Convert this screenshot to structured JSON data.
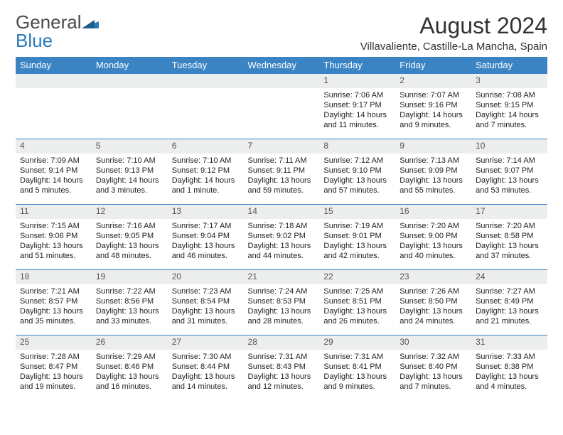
{
  "logo": {
    "word1": "General",
    "word2": "Blue"
  },
  "title": "August 2024",
  "subtitle": "Villavaliente, Castille-La Mancha, Spain",
  "colors": {
    "header_bg": "#3b84c4",
    "daybar_bg": "#eceded",
    "accent_border": "#3b84c4",
    "text": "#222222",
    "logo_gray": "#4a4a4a",
    "logo_blue": "#2a7ab9"
  },
  "typography": {
    "title_fontsize": 32,
    "subtitle_fontsize": 15,
    "th_fontsize": 13,
    "daynum_fontsize": 12,
    "body_fontsize": 11
  },
  "weekdays": [
    "Sunday",
    "Monday",
    "Tuesday",
    "Wednesday",
    "Thursday",
    "Friday",
    "Saturday"
  ],
  "weeks": [
    [
      null,
      null,
      null,
      null,
      {
        "n": "1",
        "sr": "Sunrise: 7:06 AM",
        "ss": "Sunset: 9:17 PM",
        "d1": "Daylight: 14 hours",
        "d2": "and 11 minutes."
      },
      {
        "n": "2",
        "sr": "Sunrise: 7:07 AM",
        "ss": "Sunset: 9:16 PM",
        "d1": "Daylight: 14 hours",
        "d2": "and 9 minutes."
      },
      {
        "n": "3",
        "sr": "Sunrise: 7:08 AM",
        "ss": "Sunset: 9:15 PM",
        "d1": "Daylight: 14 hours",
        "d2": "and 7 minutes."
      }
    ],
    [
      {
        "n": "4",
        "sr": "Sunrise: 7:09 AM",
        "ss": "Sunset: 9:14 PM",
        "d1": "Daylight: 14 hours",
        "d2": "and 5 minutes."
      },
      {
        "n": "5",
        "sr": "Sunrise: 7:10 AM",
        "ss": "Sunset: 9:13 PM",
        "d1": "Daylight: 14 hours",
        "d2": "and 3 minutes."
      },
      {
        "n": "6",
        "sr": "Sunrise: 7:10 AM",
        "ss": "Sunset: 9:12 PM",
        "d1": "Daylight: 14 hours",
        "d2": "and 1 minute."
      },
      {
        "n": "7",
        "sr": "Sunrise: 7:11 AM",
        "ss": "Sunset: 9:11 PM",
        "d1": "Daylight: 13 hours",
        "d2": "and 59 minutes."
      },
      {
        "n": "8",
        "sr": "Sunrise: 7:12 AM",
        "ss": "Sunset: 9:10 PM",
        "d1": "Daylight: 13 hours",
        "d2": "and 57 minutes."
      },
      {
        "n": "9",
        "sr": "Sunrise: 7:13 AM",
        "ss": "Sunset: 9:09 PM",
        "d1": "Daylight: 13 hours",
        "d2": "and 55 minutes."
      },
      {
        "n": "10",
        "sr": "Sunrise: 7:14 AM",
        "ss": "Sunset: 9:07 PM",
        "d1": "Daylight: 13 hours",
        "d2": "and 53 minutes."
      }
    ],
    [
      {
        "n": "11",
        "sr": "Sunrise: 7:15 AM",
        "ss": "Sunset: 9:06 PM",
        "d1": "Daylight: 13 hours",
        "d2": "and 51 minutes."
      },
      {
        "n": "12",
        "sr": "Sunrise: 7:16 AM",
        "ss": "Sunset: 9:05 PM",
        "d1": "Daylight: 13 hours",
        "d2": "and 48 minutes."
      },
      {
        "n": "13",
        "sr": "Sunrise: 7:17 AM",
        "ss": "Sunset: 9:04 PM",
        "d1": "Daylight: 13 hours",
        "d2": "and 46 minutes."
      },
      {
        "n": "14",
        "sr": "Sunrise: 7:18 AM",
        "ss": "Sunset: 9:02 PM",
        "d1": "Daylight: 13 hours",
        "d2": "and 44 minutes."
      },
      {
        "n": "15",
        "sr": "Sunrise: 7:19 AM",
        "ss": "Sunset: 9:01 PM",
        "d1": "Daylight: 13 hours",
        "d2": "and 42 minutes."
      },
      {
        "n": "16",
        "sr": "Sunrise: 7:20 AM",
        "ss": "Sunset: 9:00 PM",
        "d1": "Daylight: 13 hours",
        "d2": "and 40 minutes."
      },
      {
        "n": "17",
        "sr": "Sunrise: 7:20 AM",
        "ss": "Sunset: 8:58 PM",
        "d1": "Daylight: 13 hours",
        "d2": "and 37 minutes."
      }
    ],
    [
      {
        "n": "18",
        "sr": "Sunrise: 7:21 AM",
        "ss": "Sunset: 8:57 PM",
        "d1": "Daylight: 13 hours",
        "d2": "and 35 minutes."
      },
      {
        "n": "19",
        "sr": "Sunrise: 7:22 AM",
        "ss": "Sunset: 8:56 PM",
        "d1": "Daylight: 13 hours",
        "d2": "and 33 minutes."
      },
      {
        "n": "20",
        "sr": "Sunrise: 7:23 AM",
        "ss": "Sunset: 8:54 PM",
        "d1": "Daylight: 13 hours",
        "d2": "and 31 minutes."
      },
      {
        "n": "21",
        "sr": "Sunrise: 7:24 AM",
        "ss": "Sunset: 8:53 PM",
        "d1": "Daylight: 13 hours",
        "d2": "and 28 minutes."
      },
      {
        "n": "22",
        "sr": "Sunrise: 7:25 AM",
        "ss": "Sunset: 8:51 PM",
        "d1": "Daylight: 13 hours",
        "d2": "and 26 minutes."
      },
      {
        "n": "23",
        "sr": "Sunrise: 7:26 AM",
        "ss": "Sunset: 8:50 PM",
        "d1": "Daylight: 13 hours",
        "d2": "and 24 minutes."
      },
      {
        "n": "24",
        "sr": "Sunrise: 7:27 AM",
        "ss": "Sunset: 8:49 PM",
        "d1": "Daylight: 13 hours",
        "d2": "and 21 minutes."
      }
    ],
    [
      {
        "n": "25",
        "sr": "Sunrise: 7:28 AM",
        "ss": "Sunset: 8:47 PM",
        "d1": "Daylight: 13 hours",
        "d2": "and 19 minutes."
      },
      {
        "n": "26",
        "sr": "Sunrise: 7:29 AM",
        "ss": "Sunset: 8:46 PM",
        "d1": "Daylight: 13 hours",
        "d2": "and 16 minutes."
      },
      {
        "n": "27",
        "sr": "Sunrise: 7:30 AM",
        "ss": "Sunset: 8:44 PM",
        "d1": "Daylight: 13 hours",
        "d2": "and 14 minutes."
      },
      {
        "n": "28",
        "sr": "Sunrise: 7:31 AM",
        "ss": "Sunset: 8:43 PM",
        "d1": "Daylight: 13 hours",
        "d2": "and 12 minutes."
      },
      {
        "n": "29",
        "sr": "Sunrise: 7:31 AM",
        "ss": "Sunset: 8:41 PM",
        "d1": "Daylight: 13 hours",
        "d2": "and 9 minutes."
      },
      {
        "n": "30",
        "sr": "Sunrise: 7:32 AM",
        "ss": "Sunset: 8:40 PM",
        "d1": "Daylight: 13 hours",
        "d2": "and 7 minutes."
      },
      {
        "n": "31",
        "sr": "Sunrise: 7:33 AM",
        "ss": "Sunset: 8:38 PM",
        "d1": "Daylight: 13 hours",
        "d2": "and 4 minutes."
      }
    ]
  ]
}
